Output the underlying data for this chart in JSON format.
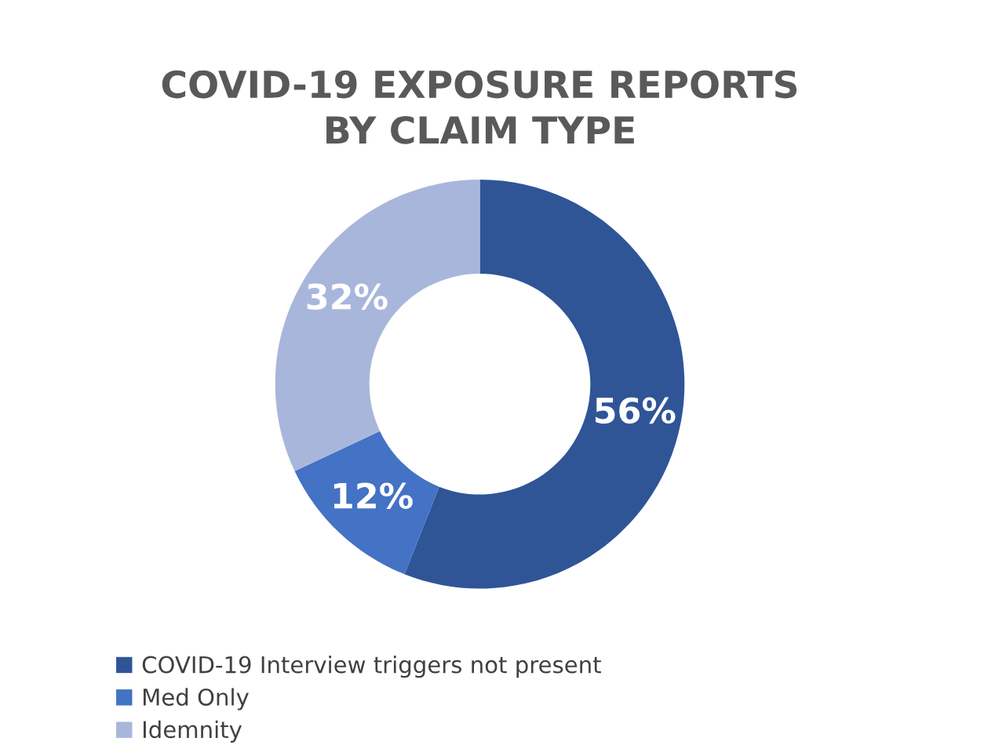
{
  "chart_data": {
    "type": "donut",
    "title": "COVID-19 EXPOSURE REPORTS\nBY CLAIM TYPE",
    "categories": [
      "COVID-19 Interview triggers not present",
      "Med Only",
      "Idemnity"
    ],
    "values": [
      56,
      12,
      32
    ],
    "colors": [
      "#2f5597",
      "#4472c4",
      "#a9b6dc"
    ],
    "value_labels": [
      "56%",
      "12%",
      "32%"
    ],
    "legend": "bottom"
  }
}
